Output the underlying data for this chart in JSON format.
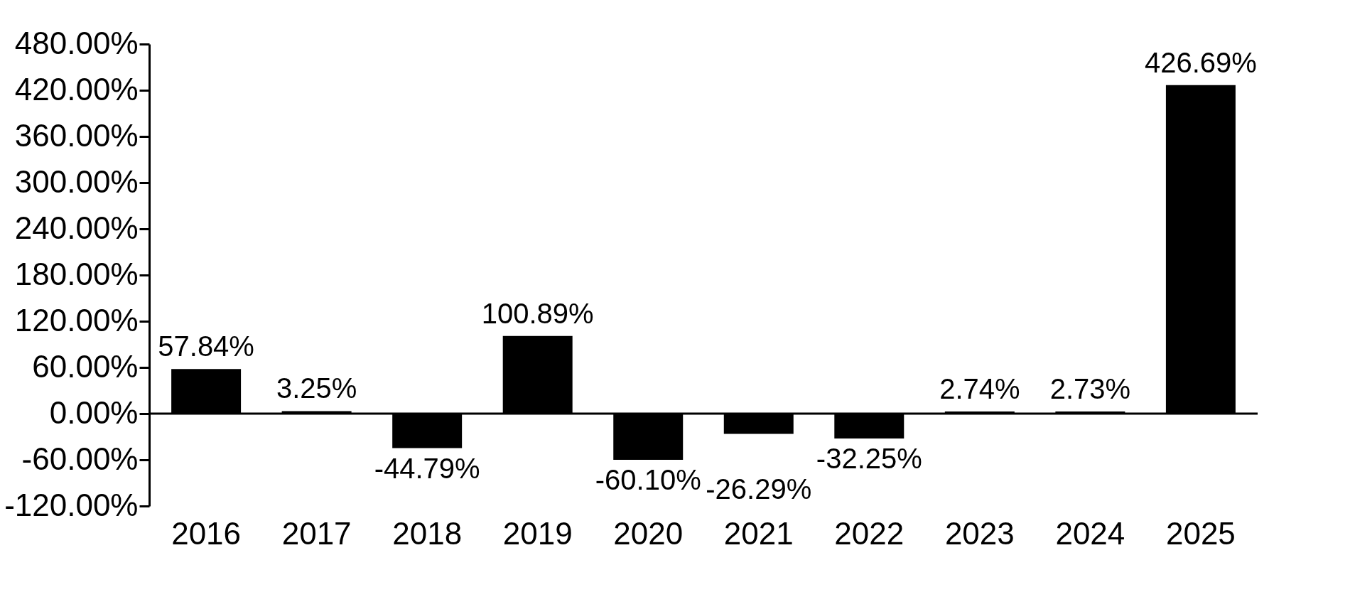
{
  "chart_data": {
    "type": "bar",
    "categories": [
      "2016",
      "2017",
      "2018",
      "2019",
      "2020",
      "2021",
      "2022",
      "2023",
      "2024",
      "2025"
    ],
    "values": [
      57.84,
      3.25,
      -44.79,
      100.89,
      -60.1,
      -26.29,
      -32.25,
      2.74,
      2.73,
      426.69
    ],
    "color": "#000000",
    "value_labels": [
      "57.84%",
      "3.25%",
      "-44.79%",
      "100.89%",
      "-60.10%",
      "-26.29%",
      "-32.25%",
      "2.74%",
      "2.73%",
      "426.69%"
    ],
    "ylim": [
      -120,
      480
    ],
    "yticks": [
      {
        "value": -120,
        "label": "-120.00%"
      },
      {
        "value": -60,
        "label": "-60.00%"
      },
      {
        "value": 0,
        "label": "0.00%"
      },
      {
        "value": 60,
        "label": "60.00%"
      },
      {
        "value": 120,
        "label": "120.00%"
      },
      {
        "value": 180,
        "label": "180.00%"
      },
      {
        "value": 240,
        "label": "240.00%"
      },
      {
        "value": 300,
        "label": "300.00%"
      },
      {
        "value": 360,
        "label": "360.00%"
      },
      {
        "value": 420,
        "label": "420.00%"
      },
      {
        "value": 480,
        "label": "480.00%"
      }
    ],
    "ref_lines": [
      {
        "axis": "y",
        "value": 0,
        "color": "#000000"
      }
    ],
    "grid": false
  }
}
